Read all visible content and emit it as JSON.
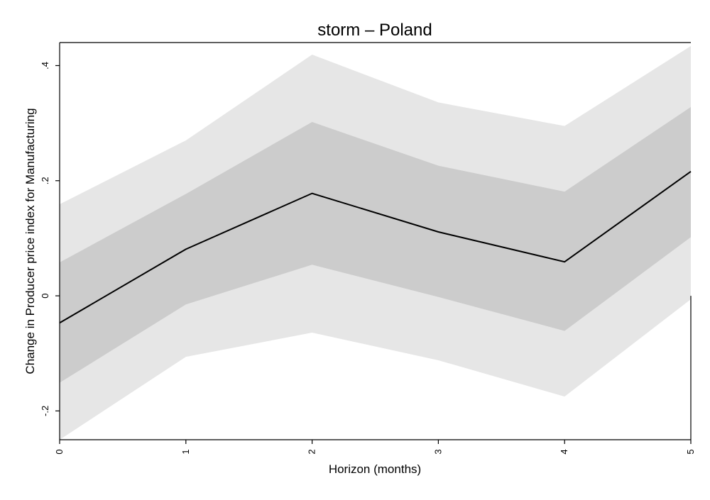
{
  "chart_data": {
    "type": "line",
    "title": "storm – Poland",
    "xlabel": "Horizon (months)",
    "ylabel": "Change in Producer price index for Manufacturing",
    "x": [
      0,
      1,
      2,
      3,
      4,
      5
    ],
    "xlim": [
      0,
      5
    ],
    "ylim": [
      -0.25,
      0.44
    ],
    "x_ticks": [
      0,
      1,
      2,
      3,
      4,
      5
    ],
    "x_tick_labels": [
      "0",
      "1",
      "2",
      "3",
      "4",
      "5"
    ],
    "y_ticks": [
      -0.2,
      0,
      0.2,
      0.4
    ],
    "y_tick_labels": [
      "-.2",
      "0",
      ".2",
      ".4"
    ],
    "grid": false,
    "legend": "none",
    "series": [
      {
        "role": "estimate",
        "values": [
          -0.047,
          0.081,
          0.178,
          0.111,
          0.059,
          0.216
        ],
        "color": "#000000"
      }
    ],
    "bands": [
      {
        "role": "outer",
        "lower": [
          -0.25,
          -0.106,
          -0.064,
          -0.112,
          -0.175,
          -0.006
        ],
        "upper": [
          0.159,
          0.27,
          0.419,
          0.336,
          0.295,
          0.434
        ],
        "color": "#e6e6e6"
      },
      {
        "role": "inner",
        "lower": [
          -0.151,
          -0.015,
          0.054,
          -0.002,
          -0.061,
          0.102
        ],
        "upper": [
          0.058,
          0.177,
          0.302,
          0.226,
          0.181,
          0.328
        ],
        "color": "#cccccc"
      }
    ]
  }
}
